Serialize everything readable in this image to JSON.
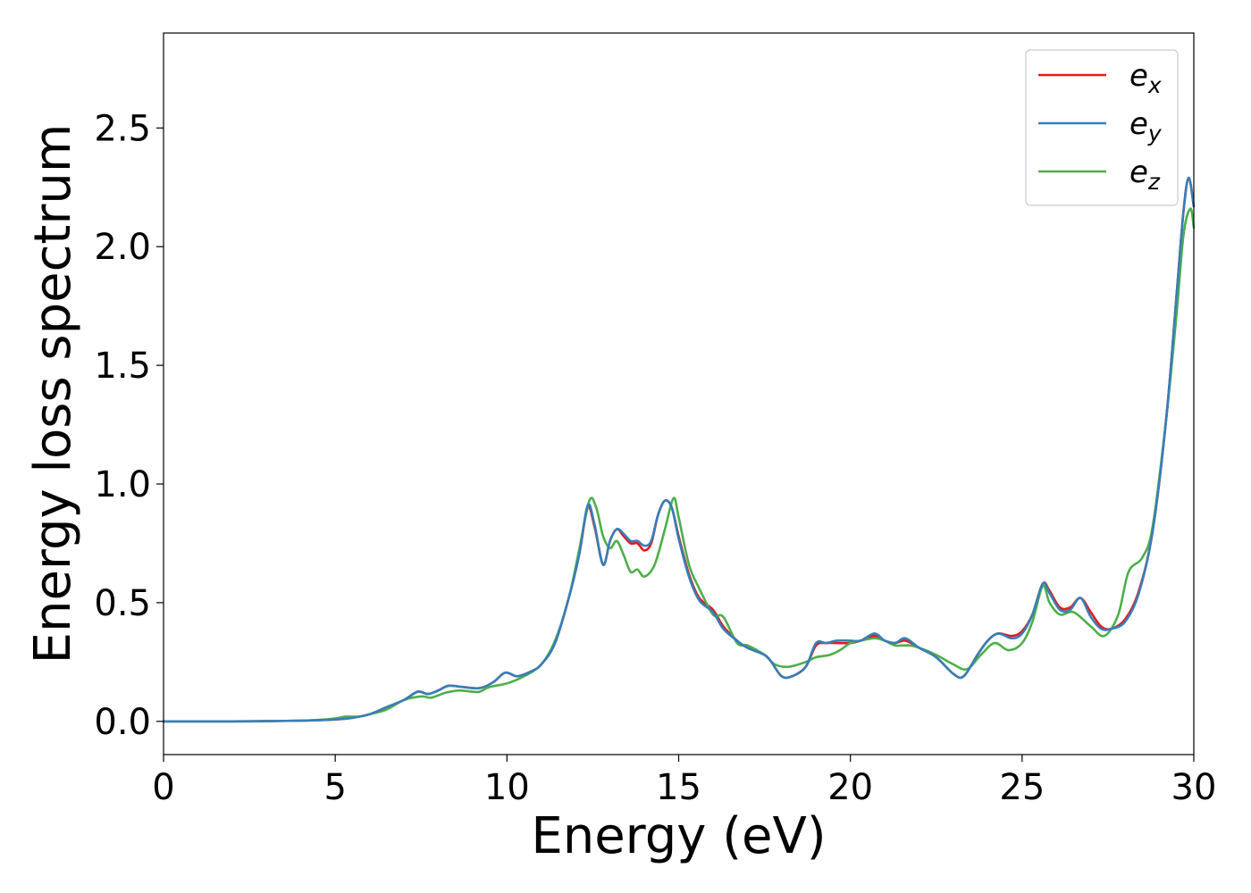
{
  "chart_data": {
    "type": "line",
    "xlabel": "Energy (eV)",
    "ylabel": "Energy loss spectrum",
    "xlim": [
      0,
      30
    ],
    "ylim": [
      -0.14,
      2.9
    ],
    "xticks": [
      0,
      5,
      10,
      15,
      20,
      25,
      30
    ],
    "xtick_labels": [
      "0",
      "5",
      "10",
      "15",
      "20",
      "25",
      "30"
    ],
    "yticks": [
      0.0,
      0.5,
      1.0,
      1.5,
      2.0,
      2.5
    ],
    "ytick_labels": [
      "0.0",
      "0.5",
      "1.0",
      "1.5",
      "2.0",
      "2.5"
    ],
    "grid": false,
    "legend_position": "top-right",
    "series": [
      {
        "name": "e_x",
        "label_main": "e",
        "label_sub": "x",
        "color": "#e41a1c",
        "points": [
          [
            0,
            0.0
          ],
          [
            2,
            0.0
          ],
          [
            3,
            0.001
          ],
          [
            4,
            0.003
          ],
          [
            4.5,
            0.005
          ],
          [
            5,
            0.008
          ],
          [
            5.5,
            0.015
          ],
          [
            6,
            0.03
          ],
          [
            6.5,
            0.06
          ],
          [
            7,
            0.09
          ],
          [
            7.4,
            0.125
          ],
          [
            7.7,
            0.115
          ],
          [
            8,
            0.13
          ],
          [
            8.3,
            0.15
          ],
          [
            8.7,
            0.145
          ],
          [
            9.2,
            0.14
          ],
          [
            9.6,
            0.165
          ],
          [
            9.95,
            0.205
          ],
          [
            10.3,
            0.19
          ],
          [
            10.7,
            0.21
          ],
          [
            11,
            0.24
          ],
          [
            11.4,
            0.33
          ],
          [
            11.8,
            0.52
          ],
          [
            12.1,
            0.7
          ],
          [
            12.35,
            0.9
          ],
          [
            12.55,
            0.82
          ],
          [
            12.8,
            0.66
          ],
          [
            13.0,
            0.76
          ],
          [
            13.2,
            0.81
          ],
          [
            13.4,
            0.78
          ],
          [
            13.6,
            0.75
          ],
          [
            13.8,
            0.75
          ],
          [
            14.0,
            0.72
          ],
          [
            14.2,
            0.75
          ],
          [
            14.4,
            0.87
          ],
          [
            14.6,
            0.93
          ],
          [
            14.8,
            0.9
          ],
          [
            15.0,
            0.78
          ],
          [
            15.3,
            0.62
          ],
          [
            15.6,
            0.52
          ],
          [
            16.0,
            0.47
          ],
          [
            16.3,
            0.4
          ],
          [
            16.7,
            0.34
          ],
          [
            17.0,
            0.31
          ],
          [
            17.5,
            0.28
          ],
          [
            17.7,
            0.25
          ],
          [
            18.0,
            0.19
          ],
          [
            18.3,
            0.19
          ],
          [
            18.7,
            0.23
          ],
          [
            19.0,
            0.32
          ],
          [
            19.3,
            0.33
          ],
          [
            19.6,
            0.33
          ],
          [
            20.0,
            0.33
          ],
          [
            20.3,
            0.34
          ],
          [
            20.7,
            0.36
          ],
          [
            21.0,
            0.34
          ],
          [
            21.3,
            0.33
          ],
          [
            21.6,
            0.34
          ],
          [
            22.0,
            0.31
          ],
          [
            22.5,
            0.27
          ],
          [
            23.0,
            0.2
          ],
          [
            23.3,
            0.19
          ],
          [
            23.7,
            0.28
          ],
          [
            24.0,
            0.34
          ],
          [
            24.3,
            0.37
          ],
          [
            24.7,
            0.36
          ],
          [
            25.0,
            0.38
          ],
          [
            25.3,
            0.45
          ],
          [
            25.6,
            0.58
          ],
          [
            25.8,
            0.55
          ],
          [
            26.1,
            0.48
          ],
          [
            26.4,
            0.48
          ],
          [
            26.7,
            0.52
          ],
          [
            27.0,
            0.46
          ],
          [
            27.3,
            0.4
          ],
          [
            27.6,
            0.39
          ],
          [
            28.0,
            0.43
          ],
          [
            28.4,
            0.55
          ],
          [
            28.8,
            0.8
          ],
          [
            29.2,
            1.28
          ],
          [
            29.5,
            1.8
          ],
          [
            29.7,
            2.15
          ],
          [
            29.85,
            2.29
          ],
          [
            30.0,
            2.17
          ]
        ]
      },
      {
        "name": "e_y",
        "label_main": "e",
        "label_sub": "y",
        "color": "#377eb8",
        "points": [
          [
            0,
            0.0
          ],
          [
            2,
            0.0
          ],
          [
            3,
            0.001
          ],
          [
            4,
            0.003
          ],
          [
            4.5,
            0.005
          ],
          [
            5,
            0.008
          ],
          [
            5.5,
            0.015
          ],
          [
            6,
            0.03
          ],
          [
            6.5,
            0.06
          ],
          [
            7,
            0.09
          ],
          [
            7.4,
            0.125
          ],
          [
            7.7,
            0.115
          ],
          [
            8,
            0.13
          ],
          [
            8.3,
            0.15
          ],
          [
            8.7,
            0.145
          ],
          [
            9.2,
            0.14
          ],
          [
            9.6,
            0.165
          ],
          [
            9.95,
            0.205
          ],
          [
            10.3,
            0.19
          ],
          [
            10.7,
            0.21
          ],
          [
            11,
            0.24
          ],
          [
            11.4,
            0.33
          ],
          [
            11.8,
            0.52
          ],
          [
            12.1,
            0.7
          ],
          [
            12.35,
            0.91
          ],
          [
            12.55,
            0.83
          ],
          [
            12.8,
            0.66
          ],
          [
            13.0,
            0.76
          ],
          [
            13.2,
            0.81
          ],
          [
            13.4,
            0.79
          ],
          [
            13.6,
            0.76
          ],
          [
            13.8,
            0.76
          ],
          [
            14.0,
            0.74
          ],
          [
            14.2,
            0.76
          ],
          [
            14.4,
            0.87
          ],
          [
            14.6,
            0.93
          ],
          [
            14.8,
            0.9
          ],
          [
            15.0,
            0.77
          ],
          [
            15.3,
            0.61
          ],
          [
            15.6,
            0.51
          ],
          [
            16.0,
            0.46
          ],
          [
            16.3,
            0.39
          ],
          [
            16.7,
            0.34
          ],
          [
            17.0,
            0.31
          ],
          [
            17.5,
            0.28
          ],
          [
            17.7,
            0.25
          ],
          [
            18.0,
            0.19
          ],
          [
            18.3,
            0.19
          ],
          [
            18.7,
            0.23
          ],
          [
            19.0,
            0.33
          ],
          [
            19.3,
            0.33
          ],
          [
            19.6,
            0.34
          ],
          [
            20.0,
            0.34
          ],
          [
            20.3,
            0.34
          ],
          [
            20.7,
            0.37
          ],
          [
            21.0,
            0.34
          ],
          [
            21.3,
            0.33
          ],
          [
            21.6,
            0.35
          ],
          [
            22.0,
            0.31
          ],
          [
            22.5,
            0.27
          ],
          [
            23.0,
            0.2
          ],
          [
            23.3,
            0.19
          ],
          [
            23.7,
            0.28
          ],
          [
            24.0,
            0.34
          ],
          [
            24.3,
            0.37
          ],
          [
            24.7,
            0.35
          ],
          [
            25.0,
            0.37
          ],
          [
            25.3,
            0.45
          ],
          [
            25.6,
            0.58
          ],
          [
            25.8,
            0.54
          ],
          [
            26.1,
            0.47
          ],
          [
            26.4,
            0.47
          ],
          [
            26.7,
            0.52
          ],
          [
            27.0,
            0.44
          ],
          [
            27.3,
            0.39
          ],
          [
            27.6,
            0.39
          ],
          [
            28.0,
            0.42
          ],
          [
            28.4,
            0.54
          ],
          [
            28.8,
            0.8
          ],
          [
            29.2,
            1.28
          ],
          [
            29.5,
            1.8
          ],
          [
            29.7,
            2.15
          ],
          [
            29.85,
            2.29
          ],
          [
            30.0,
            2.17
          ]
        ]
      },
      {
        "name": "e_z",
        "label_main": "e",
        "label_sub": "z",
        "color": "#4daf4a",
        "points": [
          [
            0,
            0.0
          ],
          [
            2,
            0.0
          ],
          [
            3,
            0.001
          ],
          [
            4,
            0.003
          ],
          [
            4.5,
            0.006
          ],
          [
            5,
            0.012
          ],
          [
            5.3,
            0.02
          ],
          [
            5.7,
            0.02
          ],
          [
            6,
            0.03
          ],
          [
            6.5,
            0.05
          ],
          [
            7,
            0.09
          ],
          [
            7.5,
            0.105
          ],
          [
            7.8,
            0.1
          ],
          [
            8.2,
            0.12
          ],
          [
            8.6,
            0.13
          ],
          [
            9.0,
            0.125
          ],
          [
            9.2,
            0.125
          ],
          [
            9.5,
            0.145
          ],
          [
            10.0,
            0.16
          ],
          [
            10.5,
            0.19
          ],
          [
            11.0,
            0.24
          ],
          [
            11.4,
            0.34
          ],
          [
            11.8,
            0.52
          ],
          [
            12.1,
            0.72
          ],
          [
            12.4,
            0.93
          ],
          [
            12.6,
            0.9
          ],
          [
            12.8,
            0.78
          ],
          [
            13.0,
            0.73
          ],
          [
            13.2,
            0.76
          ],
          [
            13.4,
            0.7
          ],
          [
            13.6,
            0.63
          ],
          [
            13.8,
            0.64
          ],
          [
            14.0,
            0.61
          ],
          [
            14.3,
            0.66
          ],
          [
            14.6,
            0.81
          ],
          [
            14.85,
            0.94
          ],
          [
            15.0,
            0.86
          ],
          [
            15.3,
            0.66
          ],
          [
            15.6,
            0.56
          ],
          [
            16.0,
            0.45
          ],
          [
            16.3,
            0.44
          ],
          [
            16.7,
            0.33
          ],
          [
            17.0,
            0.32
          ],
          [
            17.5,
            0.28
          ],
          [
            17.8,
            0.24
          ],
          [
            18.2,
            0.23
          ],
          [
            18.7,
            0.25
          ],
          [
            19.0,
            0.27
          ],
          [
            19.4,
            0.28
          ],
          [
            19.7,
            0.3
          ],
          [
            20.0,
            0.33
          ],
          [
            20.3,
            0.34
          ],
          [
            20.7,
            0.35
          ],
          [
            21.0,
            0.34
          ],
          [
            21.3,
            0.32
          ],
          [
            21.7,
            0.32
          ],
          [
            22.0,
            0.31
          ],
          [
            22.5,
            0.28
          ],
          [
            23.0,
            0.24
          ],
          [
            23.4,
            0.22
          ],
          [
            23.8,
            0.28
          ],
          [
            24.2,
            0.33
          ],
          [
            24.6,
            0.3
          ],
          [
            25.0,
            0.33
          ],
          [
            25.3,
            0.42
          ],
          [
            25.6,
            0.57
          ],
          [
            25.8,
            0.5
          ],
          [
            26.1,
            0.45
          ],
          [
            26.5,
            0.46
          ],
          [
            27.0,
            0.4
          ],
          [
            27.4,
            0.36
          ],
          [
            27.8,
            0.45
          ],
          [
            28.1,
            0.63
          ],
          [
            28.5,
            0.69
          ],
          [
            28.8,
            0.82
          ],
          [
            29.2,
            1.28
          ],
          [
            29.5,
            1.72
          ],
          [
            29.7,
            2.05
          ],
          [
            29.9,
            2.16
          ],
          [
            30.0,
            2.08
          ]
        ]
      }
    ]
  }
}
